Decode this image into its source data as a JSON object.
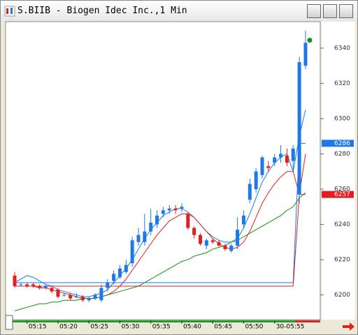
{
  "chart_data": {
    "type": "candlestick",
    "title": "S.BIIB - Biogen Idec Inc.,1 Min",
    "categories": [
      null,
      null,
      "05:15",
      null,
      null,
      null,
      null,
      "05:20",
      null,
      null,
      null,
      null,
      "05:25",
      null,
      null,
      null,
      null,
      "05:30",
      null,
      null,
      null,
      null,
      "05:35",
      null,
      null,
      null,
      null,
      "05:40",
      null,
      null,
      null,
      null,
      "05:45",
      null,
      null,
      null,
      null,
      "05:50",
      null,
      null,
      null,
      null,
      "30-05:55",
      null,
      null,
      null,
      null,
      null
    ],
    "open": [
      6211,
      6206,
      6206,
      6206,
      6205,
      6204,
      6204,
      6203,
      6200,
      6200,
      6199,
      6199,
      6197,
      6198,
      6197,
      6204,
      6208,
      6210,
      6213,
      6218,
      6230,
      6230,
      6236,
      6240,
      6246,
      6248,
      6249,
      6249,
      6246,
      6238,
      6234,
      6228,
      6231,
      6230,
      6228,
      6225,
      6228,
      6240,
      6254,
      6260,
      6268,
      6273,
      6275,
      6278,
      6279,
      6276,
      6257,
      6330
    ],
    "high": [
      6213,
      6207,
      6207,
      6207,
      6206,
      6206,
      6205,
      6204,
      6201,
      6201,
      6201,
      6200,
      6199,
      6201,
      6206,
      6209,
      6214,
      6217,
      6220,
      6233,
      6238,
      6246,
      6249,
      6248,
      6250,
      6251,
      6251,
      6252,
      6247,
      6239,
      6235,
      6232,
      6232,
      6231,
      6229,
      6229,
      6244,
      6248,
      6266,
      6272,
      6279,
      6276,
      6280,
      6285,
      6283,
      6285,
      6335,
      6350
    ],
    "low": [
      6204,
      6205,
      6204,
      6204,
      6203,
      6203,
      6201,
      6198,
      6199,
      6197,
      6198,
      6196,
      6196,
      6197,
      6196,
      6202,
      6206,
      6209,
      6212,
      6216,
      6228,
      6228,
      6234,
      6238,
      6244,
      6246,
      6246,
      6247,
      6237,
      6232,
      6228,
      6226,
      6229,
      6227,
      6225,
      6224,
      6226,
      6238,
      6252,
      6258,
      6266,
      6270,
      6273,
      6275,
      6273,
      6270,
      6252,
      6328
    ],
    "close": [
      6205,
      6206,
      6205,
      6205,
      6204,
      6205,
      6202,
      6199,
      6200,
      6198,
      6199,
      6197,
      6198,
      6200,
      6204,
      6207,
      6212,
      6215,
      6217,
      6231,
      6234,
      6236,
      6241,
      6245,
      6248,
      6249,
      6248,
      6250,
      6238,
      6234,
      6229,
      6231,
      6230,
      6228,
      6226,
      6228,
      6237,
      6245,
      6263,
      6270,
      6278,
      6272,
      6278,
      6280,
      6275,
      6283,
      6332,
      6343
    ],
    "up_color": "#1e78e6",
    "down_color": "#e02020",
    "lines": [
      {
        "color": "#1e78e6",
        "values": [
          6207,
          6209,
          6211,
          6210,
          6208,
          6206,
          6205,
          6203,
          6202,
          6201,
          6200,
          6199,
          6199,
          6200,
          6201,
          6203,
          6207,
          6211,
          6215,
          6220,
          6226,
          6232,
          6237,
          6241,
          6245,
          6247,
          6249,
          6249,
          6247,
          6244,
          6240,
          6236,
          6233,
          6231,
          6230,
          6230,
          6232,
          6238,
          6246,
          6255,
          6264,
          6270,
          6275,
          6278,
          6280,
          6270,
          6290,
          6305
        ]
      },
      {
        "color": "#e02020",
        "values": [
          6205,
          6205,
          6205,
          6205,
          6204,
          6204,
          6203,
          6202,
          6201,
          6200,
          6199,
          6198,
          6198,
          6198,
          6199,
          6200,
          6202,
          6205,
          6209,
          6214,
          6219,
          6224,
          6229,
          6234,
          6238,
          6242,
          6244,
          6246,
          6246,
          6244,
          6240,
          6236,
          6232,
          6229,
          6227,
          6226,
          6227,
          6230,
          6236,
          6244,
          6252,
          6258,
          6263,
          6267,
          6270,
          6270,
          6257,
          6280
        ]
      },
      {
        "color": "#1a8a1a",
        "values": [
          6191,
          6192,
          6193,
          6194,
          6195,
          6195,
          6196,
          6196,
          6197,
          6197,
          6197,
          6198,
          6198,
          6198,
          6199,
          6200,
          6201,
          6202,
          6203,
          6204,
          6205,
          6207,
          6209,
          6211,
          6213,
          6215,
          6217,
          6219,
          6220,
          6222,
          6223,
          6224,
          6226,
          6227,
          6228,
          6230,
          6231,
          6233,
          6235,
          6237,
          6239,
          6241,
          6243,
          6245,
          6248,
          6250,
          6255,
          6258
        ]
      },
      {
        "color": "#1e78e6",
        "values": [
          6207,
          6207,
          6207,
          6207,
          6207,
          6207,
          6207,
          6207,
          6207,
          6207,
          6207,
          6207,
          6207,
          6207,
          6207,
          6207,
          6207,
          6207,
          6207,
          6207,
          6207,
          6207,
          6207,
          6207,
          6207,
          6207,
          6207,
          6207,
          6207,
          6207,
          6207,
          6207,
          6207,
          6207,
          6207,
          6207,
          6207,
          6207,
          6207,
          6207,
          6207,
          6207,
          6207,
          6207,
          6207,
          6207,
          6286,
          6286
        ]
      },
      {
        "color": "#e02020",
        "values": [
          6205,
          6205,
          6205,
          6205,
          6205,
          6205,
          6205,
          6205,
          6205,
          6205,
          6205,
          6205,
          6205,
          6205,
          6205,
          6205,
          6205,
          6205,
          6205,
          6205,
          6205,
          6205,
          6205,
          6205,
          6205,
          6205,
          6205,
          6205,
          6205,
          6205,
          6205,
          6205,
          6205,
          6205,
          6205,
          6205,
          6205,
          6205,
          6205,
          6205,
          6205,
          6205,
          6205,
          6205,
          6205,
          6205,
          6257,
          6257
        ]
      }
    ],
    "price_labels": [
      {
        "value": 6286,
        "color": "#1e78e6"
      },
      {
        "value": 6257,
        "color": "#e02020"
      }
    ],
    "ylim": [
      6186,
      6355
    ],
    "yticks": [
      6200,
      6220,
      6240,
      6260,
      6280,
      6300,
      6320,
      6340
    ]
  }
}
